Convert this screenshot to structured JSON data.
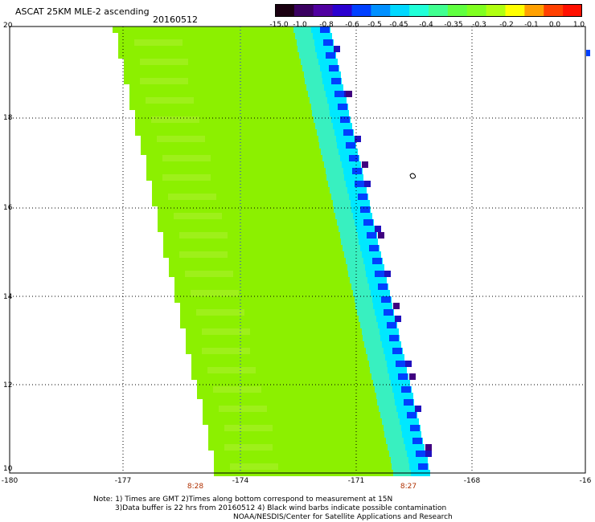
{
  "header": {
    "title": "ASCAT 25KM MLE-2 ascending",
    "date": "20160512"
  },
  "colorbar": {
    "colors": [
      "#1a0010",
      "#3a0060",
      "#5000a0",
      "#2a00d0",
      "#0040ff",
      "#0090ff",
      "#00d8ff",
      "#20ffd8",
      "#40ff90",
      "#60ff40",
      "#80ff20",
      "#b0ff10",
      "#ffff00",
      "#ffa000",
      "#ff4000",
      "#ff1000"
    ],
    "labels": [
      "-15.0",
      "-1.0",
      "-0.8",
      "-0.6",
      "-0.5",
      "-0.45",
      "-0.4",
      "-0.35",
      "-0.3",
      "-0.2",
      "-0.1",
      "0.0",
      "1.0"
    ]
  },
  "axes": {
    "y_labels": [
      "20",
      "18",
      "16",
      "14",
      "12",
      "10"
    ],
    "x_labels": [
      "-180",
      "-177",
      "-174",
      "-171",
      "-168",
      "-16"
    ],
    "time_labels": [
      "8:28",
      "8:27"
    ]
  },
  "notes": {
    "line1": "Note: 1) Times are GMT 2)Times along bottom correspond to measurement at 15N",
    "line2": "3)Data buffer is 22 hrs from 20160512 4) Black wind barbs indicate possible contamination",
    "line3": "NOAA/NESDIS/Center for Satellite Applications and Research"
  },
  "swath_colors": {
    "green": "#8cf000",
    "green_light": "#9ef01a",
    "cyan": "#00e8ff",
    "teal": "#38f0c0",
    "blue": "#0040ff",
    "dark_blue": "#2010c0",
    "purple": "#400080"
  }
}
